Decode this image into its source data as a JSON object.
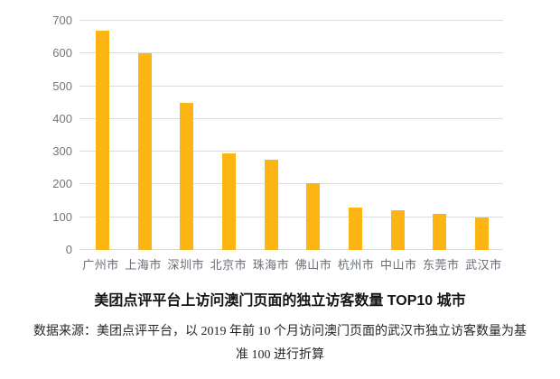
{
  "chart_data": {
    "type": "bar",
    "categories": [
      "广州市",
      "上海市",
      "深圳市",
      "北京市",
      "珠海市",
      "佛山市",
      "杭州市",
      "中山市",
      "东莞市",
      "武汉市"
    ],
    "values": [
      670,
      600,
      450,
      295,
      275,
      205,
      130,
      120,
      110,
      100
    ],
    "title": "美团点评平台上访问澳门页面的独立访客数量 TOP10 城市",
    "xlabel": "",
    "ylabel": "",
    "ylim": [
      0,
      700
    ],
    "yticks": [
      0,
      100,
      200,
      300,
      400,
      500,
      600,
      700
    ],
    "grid": true,
    "legend": false,
    "bar_color": "#FDB513",
    "gridline_color": "#DCDCDC",
    "ytick_label_color": "#757575",
    "xtick_label_color": "#696E76"
  },
  "title": "美团点评平台上访问澳门页面的独立访客数量 TOP10 城市",
  "source_note": {
    "line1": "数据来源：美团点评平台，以 2019 年前 10 个月访问澳门页面的武汉市独立访客数量为基",
    "line2": "准 100 进行折算"
  }
}
